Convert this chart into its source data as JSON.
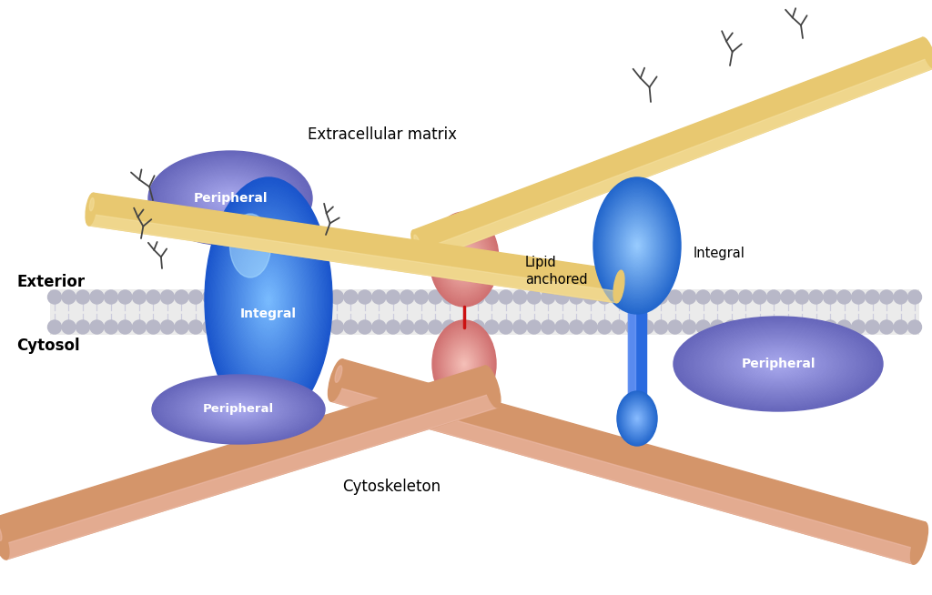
{
  "background_color": "#ffffff",
  "exterior_label": "Exterior",
  "cytosol_label": "Cytosol",
  "extracellular_matrix_label": "Extracellular matrix",
  "cytoskeleton_label": "Cytoskeleton",
  "lipid_anchored_label": "Lipid\nanchored",
  "integral_label": "Integral",
  "peripheral_label": "Peripheral",
  "blue_dark": "#1a55cc",
  "blue_mid": "#2a6adf",
  "blue_light": "#6699ff",
  "blue_highlight": "#aaccff",
  "purple_dark": "#6666bb",
  "purple_mid": "#7777cc",
  "purple_light": "#aaaadd",
  "salmon_dark": "#d07070",
  "salmon_mid": "#e89090",
  "salmon_light": "#f5b8b0",
  "ecm_color": "#e8c870",
  "ecm_light": "#f5e0a0",
  "ecm_shadow": "#c8a850",
  "cyto_color": "#d4956a",
  "cyto_light": "#eebbaa",
  "cyto_shadow": "#aa7050",
  "red_color": "#cc1111",
  "mem_color": "#e0e0e0",
  "mem_head_color": "#b8b8c8",
  "mem_tail_color": "#ccccdd"
}
